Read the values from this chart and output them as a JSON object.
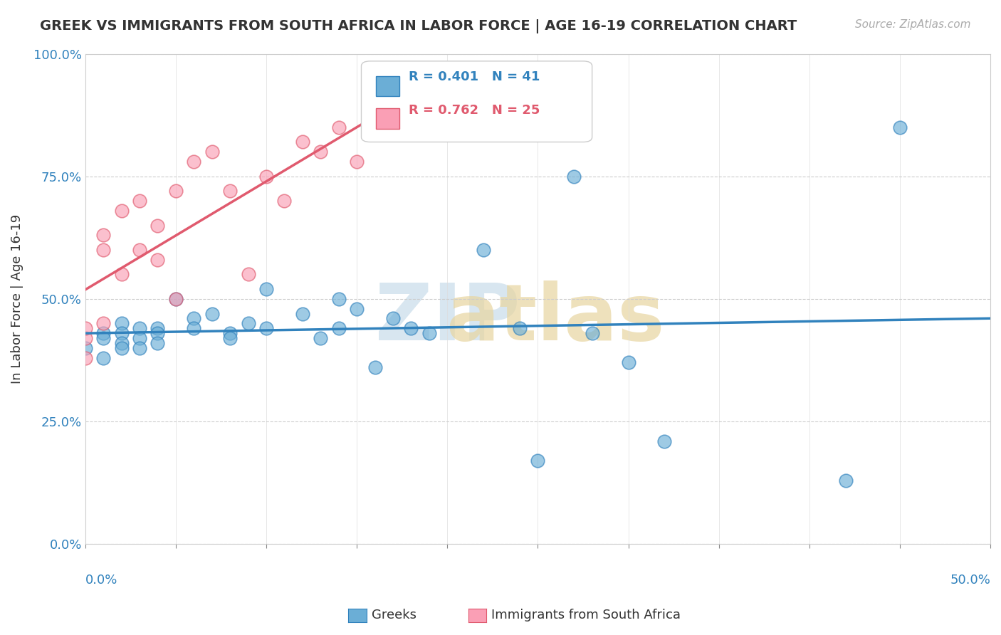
{
  "title": "GREEK VS IMMIGRANTS FROM SOUTH AFRICA IN LABOR FORCE | AGE 16-19 CORRELATION CHART",
  "source": "Source: ZipAtlas.com",
  "ylabel": "In Labor Force | Age 16-19",
  "legend_label_blue": "Greeks",
  "legend_label_pink": "Immigrants from South Africa",
  "R_blue": 0.401,
  "N_blue": 41,
  "R_pink": 0.762,
  "N_pink": 25,
  "blue_color": "#6baed6",
  "pink_color": "#fa9fb5",
  "blue_line_color": "#3182bd",
  "pink_line_color": "#e05a6e",
  "ytick_labels": [
    "0.0%",
    "25.0%",
    "50.0%",
    "75.0%",
    "100.0%"
  ],
  "ytick_values": [
    0,
    0.25,
    0.5,
    0.75,
    1.0
  ],
  "blue_x": [
    0.0,
    0.01,
    0.01,
    0.01,
    0.02,
    0.02,
    0.02,
    0.02,
    0.03,
    0.03,
    0.03,
    0.04,
    0.04,
    0.04,
    0.05,
    0.06,
    0.06,
    0.07,
    0.08,
    0.08,
    0.09,
    0.1,
    0.1,
    0.12,
    0.13,
    0.14,
    0.14,
    0.15,
    0.16,
    0.17,
    0.18,
    0.19,
    0.22,
    0.24,
    0.25,
    0.27,
    0.28,
    0.3,
    0.32,
    0.42,
    0.45
  ],
  "blue_y": [
    0.4,
    0.43,
    0.42,
    0.38,
    0.45,
    0.43,
    0.41,
    0.4,
    0.44,
    0.42,
    0.4,
    0.44,
    0.43,
    0.41,
    0.5,
    0.46,
    0.44,
    0.47,
    0.43,
    0.42,
    0.45,
    0.52,
    0.44,
    0.47,
    0.42,
    0.5,
    0.44,
    0.48,
    0.36,
    0.46,
    0.44,
    0.43,
    0.6,
    0.44,
    0.17,
    0.75,
    0.43,
    0.37,
    0.21,
    0.13,
    0.85
  ],
  "pink_x": [
    0.0,
    0.0,
    0.0,
    0.01,
    0.01,
    0.01,
    0.02,
    0.02,
    0.03,
    0.03,
    0.04,
    0.04,
    0.05,
    0.05,
    0.06,
    0.07,
    0.08,
    0.09,
    0.1,
    0.11,
    0.12,
    0.13,
    0.14,
    0.15,
    0.17
  ],
  "pink_y": [
    0.38,
    0.42,
    0.44,
    0.6,
    0.63,
    0.45,
    0.68,
    0.55,
    0.7,
    0.6,
    0.65,
    0.58,
    0.72,
    0.5,
    0.78,
    0.8,
    0.72,
    0.55,
    0.75,
    0.7,
    0.82,
    0.8,
    0.85,
    0.78,
    0.9
  ],
  "background_color": "#ffffff",
  "grid_color": "#cccccc"
}
